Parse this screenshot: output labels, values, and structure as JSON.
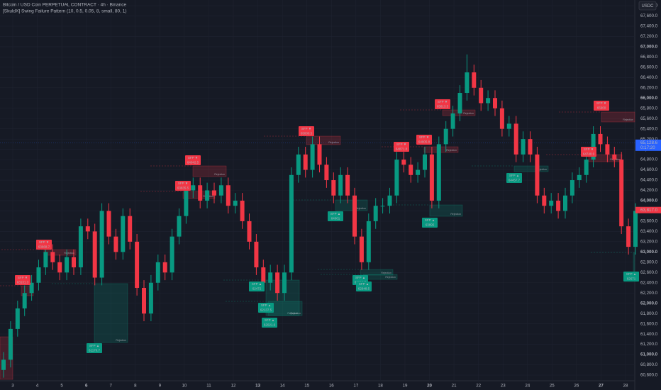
{
  "chart_data": {
    "type": "candlestick",
    "title": "Bitcoin / USD Coin PERPETUAL CONTRACT · 4h · Binance",
    "subtitle": "[SkuldX] Swing Failure Pattern (10, 0.5, 0.05, 8, small, 80, 1)",
    "currency": "USDC",
    "up_color": "#089981",
    "down_color": "#f23645",
    "open": [
      60700,
      60900,
      61500,
      61900,
      62200,
      62400,
      62700,
      63000,
      62800,
      62600,
      62900,
      62700,
      63500,
      63400,
      62500,
      63800,
      63300,
      63000,
      63700,
      63200,
      62300,
      61800,
      62400,
      62800,
      62600,
      63300,
      63700,
      64200,
      64300,
      64000,
      64200,
      64100,
      64300,
      63900,
      64000,
      63600,
      63200,
      62700,
      62400,
      62600,
      62200,
      62600,
      64500,
      64900,
      64600,
      65100,
      64700,
      64400,
      64100,
      64500,
      64100,
      63300,
      62800,
      63600,
      63900,
      63900,
      64100,
      64800,
      64700,
      64500,
      64600,
      64900,
      64000,
      65100,
      65400,
      65700,
      66100,
      66500,
      66200,
      65900,
      66000,
      65800,
      65400,
      65500,
      64900,
      65200,
      64900,
      64100,
      63900,
      64000,
      63800,
      64100,
      64400,
      64500,
      64800,
      65300,
      65100,
      64900,
      64800,
      63500,
      63100
    ],
    "high": [
      61050,
      61650,
      62050,
      62350,
      62550,
      62850,
      63150,
      63150,
      62950,
      63050,
      63050,
      63650,
      63650,
      63550,
      63950,
      63950,
      63450,
      63850,
      63850,
      63350,
      62450,
      62550,
      62950,
      62950,
      63450,
      63850,
      64350,
      64450,
      64450,
      64350,
      64350,
      64450,
      64450,
      64150,
      64150,
      63750,
      63350,
      62850,
      62750,
      62750,
      62750,
      64650,
      65050,
      65050,
      65250,
      65250,
      64850,
      64550,
      64650,
      64650,
      64250,
      63450,
      63750,
      64050,
      64050,
      64250,
      64950,
      64950,
      64850,
      64750,
      65050,
      65050,
      65250,
      65550,
      65850,
      66250,
      66850,
      66650,
      66350,
      66150,
      66150,
      65950,
      65650,
      65650,
      65350,
      65350,
      65050,
      64250,
      64150,
      64150,
      64250,
      64550,
      64650,
      64950,
      65450,
      65450,
      65250,
      65050,
      64950,
      63650,
      63950
    ],
    "low": [
      60550,
      60750,
      61350,
      61750,
      62050,
      62250,
      62550,
      62650,
      62450,
      62450,
      62550,
      62550,
      63250,
      62350,
      62350,
      63150,
      62850,
      62850,
      63050,
      62150,
      61650,
      61650,
      62250,
      62450,
      62450,
      63150,
      63550,
      64050,
      63850,
      63850,
      63950,
      63950,
      63750,
      63750,
      63450,
      63050,
      62550,
      62250,
      62250,
      62050,
      62050,
      62450,
      64350,
      64450,
      64450,
      64550,
      64250,
      63950,
      63950,
      63950,
      63150,
      62650,
      62650,
      63450,
      63750,
      63750,
      63950,
      64550,
      64350,
      64350,
      64450,
      63850,
      63850,
      64950,
      65250,
      65550,
      65950,
      66050,
      65750,
      65750,
      65650,
      65250,
      65250,
      64750,
      64750,
      64750,
      63950,
      63750,
      63750,
      63650,
      63650,
      63950,
      64250,
      64350,
      64650,
      64950,
      64750,
      64650,
      63350,
      62950,
      62950
    ],
    "close": [
      60900,
      61500,
      61900,
      62200,
      62400,
      62700,
      63000,
      62800,
      62600,
      62900,
      62700,
      63500,
      63400,
      62500,
      63800,
      63300,
      63000,
      63700,
      63200,
      62300,
      61800,
      62400,
      62800,
      62600,
      63300,
      63700,
      64200,
      64300,
      64000,
      64200,
      64100,
      64300,
      63900,
      64000,
      63600,
      63200,
      62700,
      62400,
      62600,
      62200,
      62600,
      64500,
      64900,
      64600,
      65100,
      64700,
      64400,
      64100,
      64500,
      64100,
      63300,
      62800,
      63600,
      63900,
      63900,
      64100,
      64800,
      64700,
      64500,
      64600,
      64900,
      64000,
      65100,
      65400,
      65700,
      66100,
      66500,
      66200,
      65900,
      66000,
      65800,
      65400,
      65500,
      64900,
      65200,
      64900,
      64100,
      63900,
      64000,
      63800,
      64100,
      64400,
      64500,
      64800,
      65300,
      65100,
      64900,
      64800,
      63500,
      63100,
      63800
    ],
    "ylim": [
      60500,
      67900
    ],
    "yticks": [
      {
        "value": 60600,
        "label": "60,600.0"
      },
      {
        "value": 60800,
        "label": "60,800.0"
      },
      {
        "value": 61000,
        "label": "61,000.0"
      },
      {
        "value": 61200,
        "label": "61,200.0"
      },
      {
        "value": 61400,
        "label": "61,400.0"
      },
      {
        "value": 61600,
        "label": "61,600.0"
      },
      {
        "value": 61800,
        "label": "61,800.0"
      },
      {
        "value": 62000,
        "label": "62,000.0"
      },
      {
        "value": 62200,
        "label": "62,200.0"
      },
      {
        "value": 62400,
        "label": "62,400.0"
      },
      {
        "value": 62600,
        "label": "62,600.0"
      },
      {
        "value": 62800,
        "label": "62,800.0"
      },
      {
        "value": 63000,
        "label": "63,000.0"
      },
      {
        "value": 63200,
        "label": "63,200.0"
      },
      {
        "value": 63400,
        "label": "63,400.0"
      },
      {
        "value": 63600,
        "label": "63,600.0"
      },
      {
        "value": 63800,
        "label": "63,800.0"
      },
      {
        "value": 64000,
        "label": "64,000.0"
      },
      {
        "value": 64200,
        "label": "64,200.0"
      },
      {
        "value": 64400,
        "label": "64,400.0"
      },
      {
        "value": 64600,
        "label": "64,600.0"
      },
      {
        "value": 64800,
        "label": "64,800.0"
      },
      {
        "value": 65000,
        "label": "65,000.0"
      },
      {
        "value": 65200,
        "label": "65,200.0"
      },
      {
        "value": 65400,
        "label": "65,400.0"
      },
      {
        "value": 65600,
        "label": "65,600.0"
      },
      {
        "value": 65800,
        "label": "65,800.0"
      },
      {
        "value": 66000,
        "label": "66,000.0"
      },
      {
        "value": 66200,
        "label": "66,200.0"
      },
      {
        "value": 66400,
        "label": "66,400.0"
      },
      {
        "value": 66600,
        "label": "66,600.0"
      },
      {
        "value": 66800,
        "label": "66,800.0"
      },
      {
        "value": 67000,
        "label": "67,000.0"
      },
      {
        "value": 67200,
        "label": "67,200.0"
      },
      {
        "value": 67400,
        "label": "67,400.0"
      },
      {
        "value": 67600,
        "label": "67,600.0"
      },
      {
        "value": 67800,
        "label": "67,800.0"
      }
    ],
    "categories": [
      "3",
      "4",
      "5",
      "6",
      "7",
      "8",
      "9",
      "10",
      "11",
      "12",
      "13",
      "14",
      "15",
      "16",
      "17",
      "18",
      "19",
      "20",
      "21",
      "22",
      "23",
      "24",
      "25",
      "26",
      "27",
      "28"
    ],
    "price_tags": [
      {
        "value": 65128.6,
        "label": "65,128.6",
        "sub": "0:17:20",
        "color": "#2962ff"
      },
      {
        "value": 63817.0,
        "label": "63,817.0",
        "color": "#f23645"
      }
    ],
    "zone_label": "Rejection",
    "signals": [
      {
        "label": "SFP ▼",
        "price": 63131.3,
        "color": "#f23645"
      },
      {
        "label": "SFP ▼",
        "price": 63668.7,
        "color": "#f23645"
      },
      {
        "label": "SFP ▼",
        "price": 63835.5,
        "color": "#f23645"
      },
      {
        "label": "SFP ▼",
        "price": 64042.5,
        "color": "#f23645"
      },
      {
        "label": "SFP ▼",
        "price": 65000.5,
        "color": "#f23645"
      },
      {
        "label": "SFP ▼",
        "price": 64871.8,
        "color": "#f23645"
      },
      {
        "label": "SFP ▼",
        "price": 64905.8,
        "color": "#f23645"
      },
      {
        "label": "SFP ▼",
        "price": 65813.5,
        "color": "#f23645"
      },
      {
        "label": "SFP ▼",
        "price": 64748.9,
        "color": "#f23645"
      },
      {
        "label": "SFP ▼",
        "price": 65600.0,
        "color": "#f23645"
      },
      {
        "label": "SFP ▲",
        "price": 61170.7,
        "color": "#089981"
      },
      {
        "label": "SFP ▲",
        "price": 62472.0,
        "color": "#089981"
      },
      {
        "label": "SFP ▲",
        "price": 62137.5,
        "color": "#089981"
      },
      {
        "label": "SFP ▲",
        "price": 62021.6,
        "color": "#089981"
      },
      {
        "label": "SFP ▲",
        "price": 64001.0,
        "color": "#089981"
      },
      {
        "label": "SFP ▲",
        "price": 62918.7,
        "color": "#089981"
      },
      {
        "label": "SFP ▲",
        "price": 62948.5,
        "color": "#089981"
      },
      {
        "label": "SFP ▲",
        "price": 63895.0,
        "color": "#089981"
      },
      {
        "label": "SFP ▲",
        "price": 64457.7,
        "color": "#089981"
      },
      {
        "label": "SFP ▲",
        "price": 62671.0,
        "color": "#089981"
      }
    ]
  }
}
